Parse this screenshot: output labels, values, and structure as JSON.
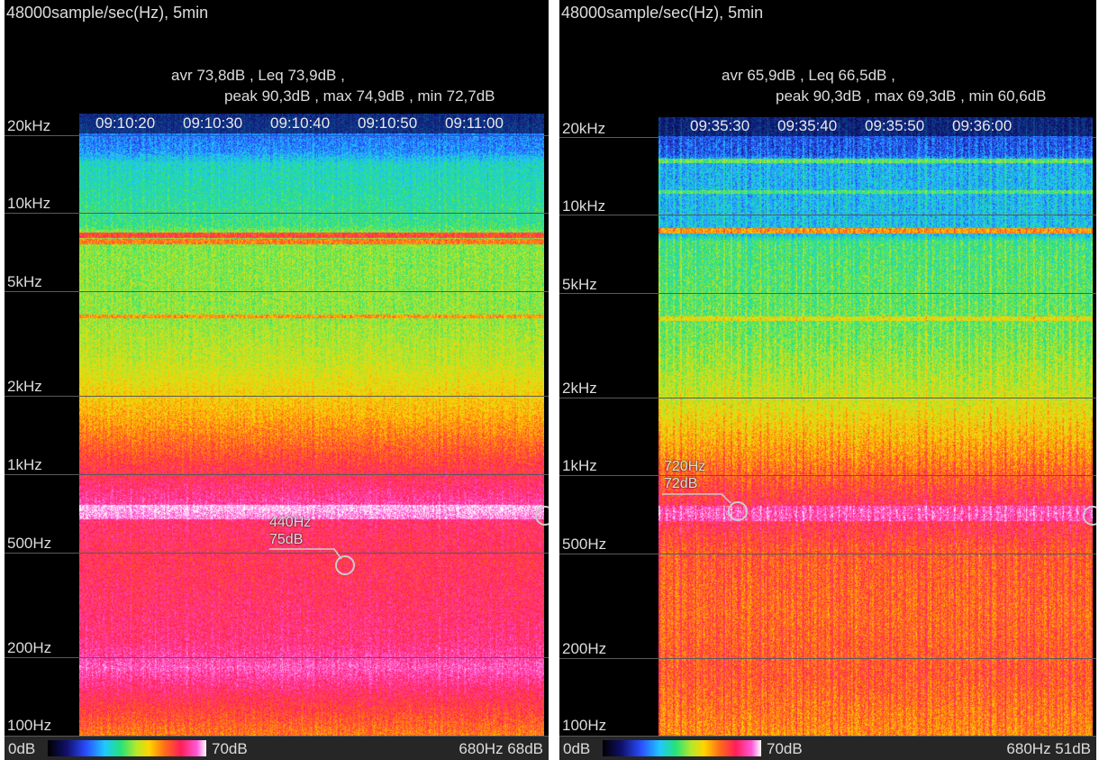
{
  "panels": {
    "left": {
      "header": "48000sample/sec(Hz), 5min",
      "stats_line1": "avr 73,8dB , Leq 73,9dB ,",
      "stats_line2": "peak 90,3dB , max 74,9dB , min 72,7dB",
      "time_labels": [
        "09:10:20",
        "09:10:30",
        "09:10:40",
        "09:10:50",
        "09:11:00"
      ],
      "freq_labels": [
        "20kHz",
        "10kHz",
        "5kHz",
        "2kHz",
        "1kHz",
        "500Hz",
        "200Hz",
        "100Hz"
      ],
      "marker": {
        "freq": "440Hz",
        "level": "75dB"
      },
      "colorbar": {
        "min": "0dB",
        "max": "70dB"
      },
      "readout": "680Hz  68dB"
    },
    "right": {
      "header": "48000sample/sec(Hz), 5min",
      "stats_line1": "avr 65,9dB , Leq 66,5dB ,",
      "stats_line2": "peak 90,3dB , max 69,3dB , min 60,6dB",
      "time_labels": [
        "09:35:30",
        "09:35:40",
        "09:35:50",
        "09:36:00"
      ],
      "freq_labels": [
        "20kHz",
        "10kHz",
        "5kHz",
        "2kHz",
        "1kHz",
        "500Hz",
        "200Hz",
        "100Hz"
      ],
      "marker": {
        "freq": "720Hz",
        "level": "72dB"
      },
      "colorbar": {
        "min": "0dB",
        "max": "70dB"
      },
      "readout": "680Hz  51dB"
    }
  },
  "colors": {
    "background": "#000000",
    "text": "#dcdcdc",
    "bottom_bar": "#262626",
    "colormap": [
      "#000000",
      "#10106a",
      "#2a4cff",
      "#1fc8ff",
      "#25e27a",
      "#b6e82a",
      "#ffd400",
      "#ff6a1a",
      "#ff1e5a",
      "#ff58d8",
      "#ffffff"
    ]
  }
}
